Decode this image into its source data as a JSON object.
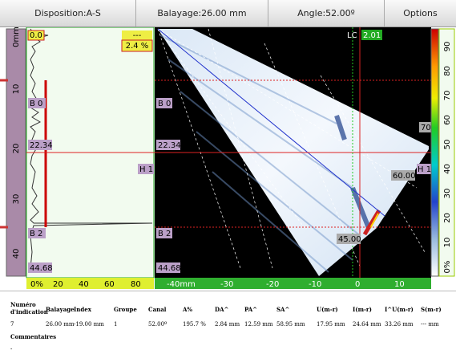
{
  "toolbar": {
    "items": [
      "Disposition:A-S",
      "Balayage:26.00 mm",
      "Angle:52.00º",
      "Options"
    ]
  },
  "left_ruler": {
    "labels": [
      "0mm",
      "10",
      "20",
      "30",
      "40"
    ]
  },
  "ascan": {
    "gate_top": "0.0",
    "readout": "---",
    "amplitude": "2.4 %",
    "b0": "B 0",
    "mid": "22.34",
    "b2": "B 2",
    "bottom": "44.68",
    "axis": [
      "0%",
      "20",
      "40",
      "60",
      "80"
    ]
  },
  "sscan": {
    "b0": "B 0",
    "mid": "22.34",
    "h1": "H 1",
    "b2": "B 2",
    "bottom": "44.68",
    "lc": "LC",
    "lc_value": "2.01",
    "angle_top": "70",
    "angle_mid": "60.00",
    "angle_low": "45.00",
    "h1_right": "H 1",
    "axis": [
      "-40mm",
      "-30",
      "-20",
      "-10",
      "0",
      "10"
    ]
  },
  "right_ruler": {
    "labels": [
      "90",
      "80",
      "70",
      "60",
      "50",
      "40",
      "30",
      "20",
      "10",
      "0%"
    ]
  },
  "table": {
    "headers": [
      "Numéro d'indication",
      "Balayage",
      "Index",
      "Groupe",
      "Canal",
      "A%",
      "DA^",
      "PA^",
      "SA^",
      "U(m-r)",
      "I(m-r)",
      "I^U(m-r)",
      "S(m-r)"
    ],
    "row": [
      "7",
      "26.00 mm",
      "-19.00 mm",
      "1",
      "52.00º",
      "195.7 %",
      "2.84 mm",
      "12.59 mm",
      "58.95 mm",
      "17.95 mm",
      "24.64 mm",
      "33.26 mm",
      "--- mm"
    ],
    "comments_label": "Commentaires",
    "comments": "-"
  }
}
